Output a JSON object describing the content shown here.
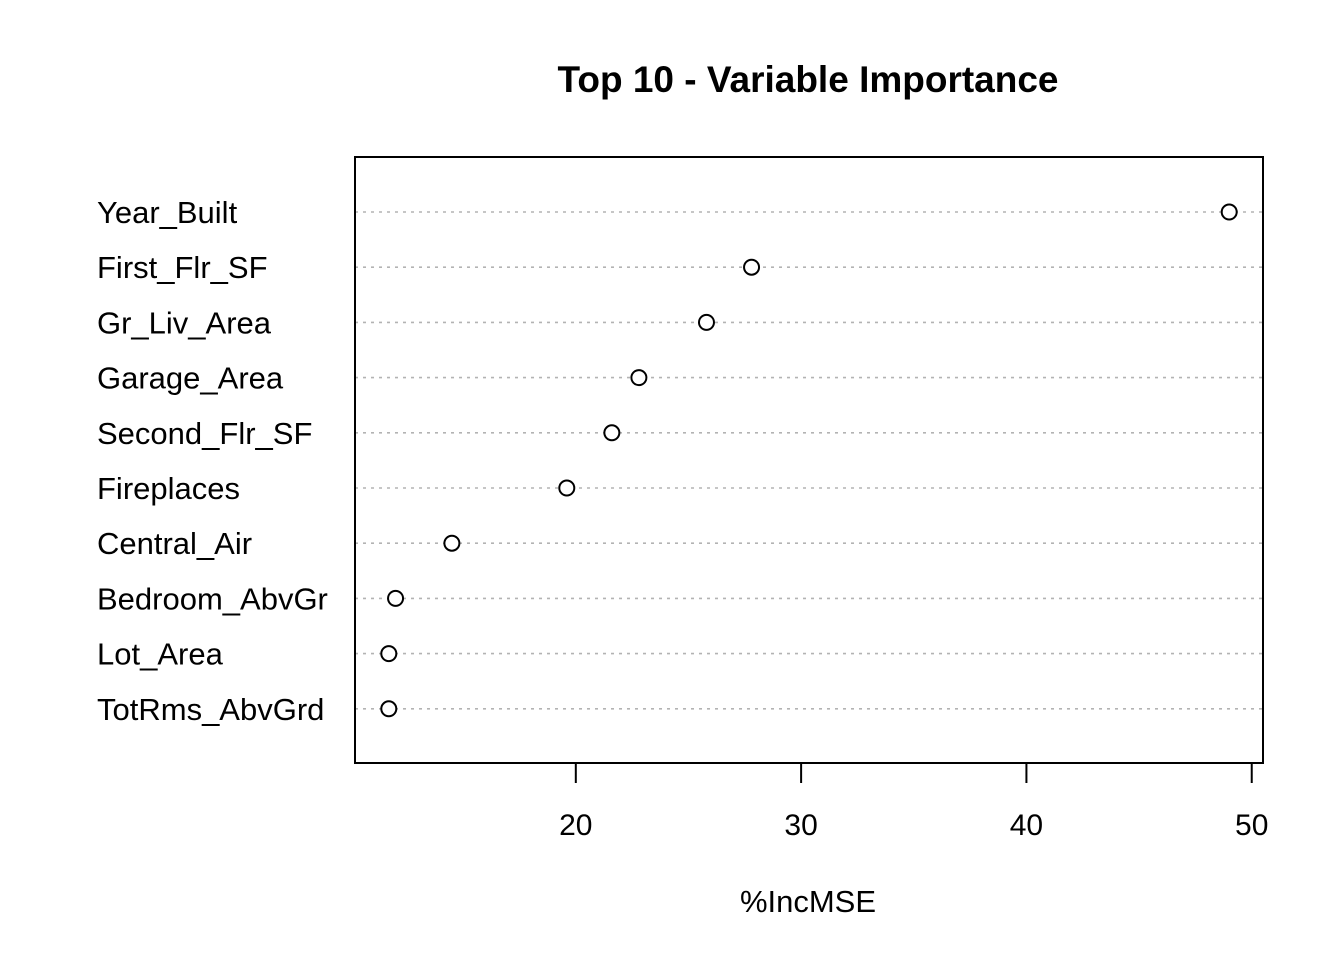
{
  "chart_data": {
    "type": "scatter",
    "subtype": "dotchart",
    "title": "Top 10 - Variable Importance",
    "xlabel": "%IncMSE",
    "ylabel": "",
    "categories": [
      "Year_Built",
      "First_Flr_SF",
      "Gr_Liv_Area",
      "Garage_Area",
      "Second_Flr_SF",
      "Fireplaces",
      "Central_Air",
      "Bedroom_AbvGr",
      "Lot_Area",
      "TotRms_AbvGrd"
    ],
    "values": [
      49.0,
      27.8,
      25.8,
      22.8,
      21.6,
      19.6,
      14.5,
      12.0,
      11.7,
      11.7
    ],
    "xlim": [
      10.2,
      50.5
    ],
    "xticks": [
      20,
      30,
      40,
      50
    ],
    "grid": "dotted horizontal lines per category",
    "legend": "none",
    "colors": {
      "grid": "#b3b3b3",
      "axis": "#000000",
      "marker": "#000000"
    }
  }
}
